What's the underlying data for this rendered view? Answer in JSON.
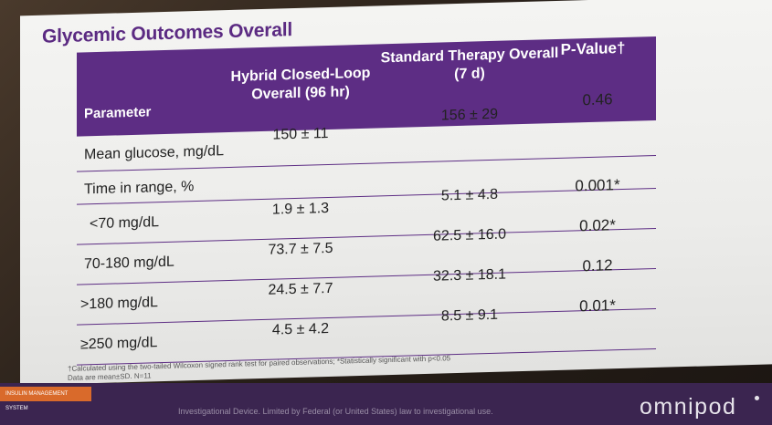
{
  "slide": {
    "title": "Glycemic Outcomes Overall",
    "headers": {
      "parameter": "Parameter",
      "hybrid": "Hybrid Closed-Loop Overall (96 hr)",
      "standard": "Standard Therapy Overall (7 d)",
      "pvalue": "P-Value†"
    },
    "rows": [
      {
        "parameter": "Mean glucose, mg/dL",
        "hybrid": "150 ± 11",
        "standard": "156 ± 29",
        "pvalue": "0.46"
      },
      {
        "parameter": "Time in range, %",
        "hybrid": "",
        "standard": "",
        "pvalue": ""
      },
      {
        "parameter": "<70 mg/dL",
        "hybrid": "1.9 ± 1.3",
        "standard": "5.1 ± 4.8",
        "pvalue": "0.001*"
      },
      {
        "parameter": "70-180 mg/dL",
        "hybrid": "73.7 ± 7.5",
        "standard": "62.5 ± 16.0",
        "pvalue": "0.02*"
      },
      {
        "parameter": ">180 mg/dL",
        "hybrid": "24.5 ± 7.7",
        "standard": "32.3 ± 18.1",
        "pvalue": "0.12"
      },
      {
        "parameter": "≥250 mg/dL",
        "hybrid": "4.5 ± 4.2",
        "standard": "8.5 ± 9.1",
        "pvalue": "0.01*"
      }
    ],
    "footnote1": "†Calculated using the two-tailed Wilcoxon signed rank test for paired observations; *Statistically significant with p<0.05",
    "footnote2": "Data are mean±SD. N=11"
  },
  "footer": {
    "tag": "INSULIN MANAGEMENT SYSTEM",
    "legal": "Investigational Device. Limited by Federal (or United States) law to investigational use.",
    "logo": "omnipod"
  },
  "colors": {
    "header_purple": "#5d2d84",
    "title_purple": "#5b2a82",
    "footer_orange": "#d96a2b"
  }
}
